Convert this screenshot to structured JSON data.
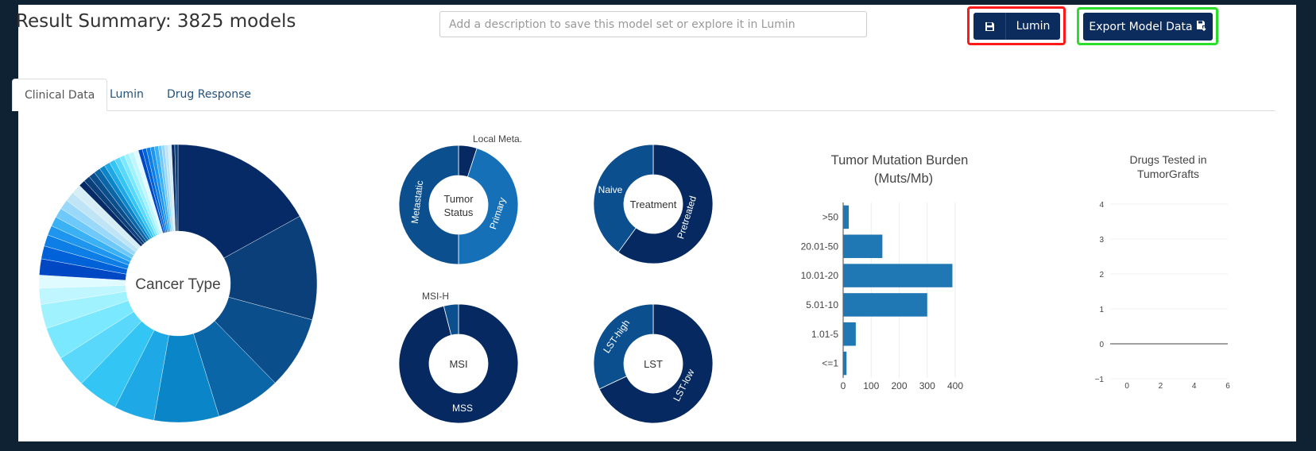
{
  "header": {
    "title": "Result Summary: 3825 models",
    "description_placeholder": "Add a description to save this model set or explore it in Lumin",
    "lumin_button": "Lumin",
    "export_button": "Export Model Data"
  },
  "tabs": [
    {
      "label": "Clinical Data",
      "active": true
    },
    {
      "label": "Lumin",
      "active": false
    },
    {
      "label": "Drug Response",
      "active": false
    }
  ],
  "colors": {
    "navy": "#0b2c5c",
    "donut_dark": "#052960",
    "bar_blue": "#1f77b4",
    "highlight_red": "#ff1a1a",
    "highlight_green": "#2adf2a"
  },
  "chart_data": [
    {
      "type": "pie",
      "center_label": "Cancer Type",
      "slice_colors": [
        "#052a66",
        "#0a3f7a",
        "#0b4e8c",
        "#0b66a8",
        "#0a86c8",
        "#1ea8e6",
        "#33c6f4",
        "#5ad8fc",
        "#7ae8ff",
        "#a0f2ff",
        "#c0f6ff",
        "#e0fbff",
        "#0047c4",
        "#0062d8",
        "#0c7ee6",
        "#1e96ef",
        "#3ab0f5",
        "#6ec8f9",
        "#9ad8fa",
        "#bfe4f5",
        "#d6edf6"
      ],
      "slices": [
        18,
        13,
        9,
        8,
        8,
        5,
        5,
        4,
        4,
        3,
        2,
        1.6,
        2,
        1.6,
        1.4,
        1.2,
        1.2,
        1.2,
        1.2,
        1.2,
        1.2,
        0.8,
        0.8,
        0.8,
        0.8,
        0.7,
        0.7,
        0.7,
        0.7,
        0.6,
        0.6,
        0.6,
        0.6,
        0.5,
        0.5,
        0.5,
        0.5,
        0.5,
        0.4,
        0.4,
        0.4,
        0.4,
        0.4,
        0.4
      ]
    },
    {
      "type": "pie",
      "center_label": [
        "Tumor",
        "Status"
      ],
      "slices": [
        {
          "label": "Local Meta.",
          "value": 5
        },
        {
          "label": "Primary",
          "value": 45
        },
        {
          "label": "Metastatic",
          "value": 50
        }
      ]
    },
    {
      "type": "pie",
      "center_label": [
        "Treatment"
      ],
      "slices": [
        {
          "label": "Pretreated",
          "value": 60
        },
        {
          "label": "Naive",
          "value": 40
        }
      ]
    },
    {
      "type": "pie",
      "center_label": [
        "MSI"
      ],
      "slices": [
        {
          "label": "MSS",
          "value": 96
        },
        {
          "label": "MSI-H",
          "value": 4
        }
      ]
    },
    {
      "type": "pie",
      "center_label": [
        "LST"
      ],
      "slices": [
        {
          "label": "LST-low",
          "value": 68
        },
        {
          "label": "LST-high",
          "value": 32
        }
      ]
    },
    {
      "type": "bar",
      "orientation": "horizontal",
      "title": [
        "Tumor Mutation Burden",
        "(Muts/Mb)"
      ],
      "categories": [
        "<=1",
        "1.01-5",
        "5.01-10",
        "10.01-20",
        "20.01-50",
        ">50"
      ],
      "values": [
        12,
        45,
        300,
        390,
        140,
        20
      ],
      "xlim": [
        0,
        450
      ],
      "xticks": [
        0,
        100,
        200,
        300,
        400
      ],
      "grid": true
    },
    {
      "type": "line",
      "title": [
        "Drugs Tested in",
        "TumorGrafts"
      ],
      "xlim": [
        -1,
        6
      ],
      "ylim": [
        -1,
        4
      ],
      "xticks": [
        0,
        2,
        4,
        6
      ],
      "yticks": [
        -1,
        0,
        1,
        2,
        3,
        4
      ],
      "series": []
    }
  ]
}
